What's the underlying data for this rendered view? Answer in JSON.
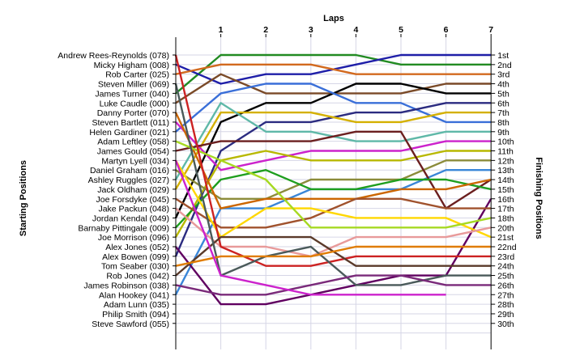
{
  "chart_data": {
    "type": "line",
    "title": "",
    "xlabel": "Laps",
    "ylabel_left": "Starting Positions",
    "ylabel_right": "Finishing Positions",
    "x": [
      0,
      1,
      2,
      3,
      4,
      5,
      6,
      7
    ],
    "x_tick_labels": [
      "1",
      "2",
      "3",
      "4",
      "5",
      "6",
      "7"
    ],
    "grid": true,
    "position_range": [
      1,
      30
    ],
    "starting_labels": [
      "Andrew Rees-Reynolds (078)",
      "Micky Higham (008)",
      "Rob Carter (025)",
      "Steven Miller (069)",
      "James Turner (040)",
      "Luke Caudle (000)",
      "Danny Porter (070)",
      "Steven Bartlett (011)",
      "Helen Gardiner (021)",
      "Adam Leftley (058)",
      "James Gould (054)",
      "Martyn Lyell (034)",
      "Daniel Graham (016)",
      "Ashley Ruggles (027)",
      "Jack Oldham (029)",
      "Joe Forsdyke (045)",
      "Jake Packun (048)",
      "Jordan Kendal (049)",
      "Barnaby Pittingale (009)",
      "Joe Morrison (096)",
      "Alex Jones (052)",
      "Alex Bowen (099)",
      "Tom Seaber (030)",
      "Rob Jones (042)",
      "James Robinson (038)",
      "Alan Hookey (041)",
      "Adam Lunn (035)",
      "Philip Smith (094)",
      "Steve Sawford (055)"
    ],
    "finishing_labels": [
      "1st",
      "2nd",
      "3rd",
      "4th",
      "5th",
      "6th",
      "7th",
      "8th",
      "9th",
      "10th",
      "11th",
      "12th",
      "13th",
      "14th",
      "15th",
      "16th",
      "17th",
      "18th",
      "20th",
      "21st",
      "22nd",
      "23rd",
      "24th",
      "25th",
      "26th",
      "27th",
      "28th",
      "29th",
      "30th"
    ],
    "series": [
      {
        "color": "#228b22",
        "positions": [
          5,
          1,
          1,
          1,
          1,
          2,
          2,
          2
        ]
      },
      {
        "color": "#1e1ea8",
        "positions": [
          2,
          4,
          3,
          3,
          2,
          1,
          1,
          1
        ]
      },
      {
        "color": "#d2691e",
        "positions": [
          3,
          2,
          2,
          2,
          3,
          3,
          3,
          3
        ]
      },
      {
        "color": "#7a4a28",
        "positions": [
          6,
          3,
          5,
          5,
          5,
          5,
          4,
          4
        ]
      },
      {
        "color": "#000000",
        "positions": [
          18,
          8,
          6,
          6,
          4,
          4,
          5,
          5
        ]
      },
      {
        "color": "#3a6fd8",
        "positions": [
          9,
          5,
          4,
          4,
          6,
          6,
          8,
          8
        ]
      },
      {
        "color": "#2b2b80",
        "positions": [
          22,
          11,
          8,
          8,
          7,
          7,
          6,
          6
        ]
      },
      {
        "color": "#d4b000",
        "positions": [
          15,
          7,
          7,
          7,
          8,
          8,
          7,
          7
        ]
      },
      {
        "color": "#5fb8a8",
        "positions": [
          14,
          6,
          9,
          9,
          10,
          10,
          9,
          9
        ]
      },
      {
        "color": "#cc22cc",
        "positions": [
          8,
          13,
          12,
          11,
          11,
          11,
          10,
          10
        ]
      },
      {
        "color": "#b8b800",
        "positions": [
          20,
          12,
          11,
          12,
          12,
          12,
          11,
          11
        ]
      },
      {
        "color": "#8b8b3a",
        "positions": [
          13,
          16,
          16,
          14,
          14,
          14,
          12,
          12
        ]
      },
      {
        "color": "#3a86d8",
        "positions": [
          26,
          17,
          17,
          15,
          15,
          15,
          13,
          13
        ]
      },
      {
        "color": "#6b1f1f",
        "positions": [
          11,
          10,
          10,
          10,
          9,
          9,
          17,
          14
        ]
      },
      {
        "color": "#1e9e1e",
        "positions": [
          19,
          14,
          13,
          15,
          15,
          14,
          14,
          15
        ]
      },
      {
        "color": "#cc6600",
        "positions": [
          7,
          17,
          16,
          16,
          16,
          15,
          15,
          14
        ]
      },
      {
        "color": "#600060",
        "positions": [
          21,
          27,
          27,
          26,
          25,
          24,
          24,
          16
        ]
      },
      {
        "color": "#a0522d",
        "positions": [
          16,
          19,
          19,
          18,
          16,
          16,
          17,
          17
        ]
      },
      {
        "color": "#ffd700",
        "positions": [
          12,
          20,
          17,
          17,
          18,
          18,
          18,
          20
        ]
      },
      {
        "color": "#a6d922",
        "positions": [
          10,
          12,
          14,
          19,
          19,
          19,
          19,
          18
        ]
      },
      {
        "color": "#e89a9a",
        "positions": [
          17,
          21,
          21,
          22,
          20,
          20,
          20,
          19
        ]
      },
      {
        "color": "#cc2222",
        "positions": [
          1,
          21,
          23,
          23,
          22,
          22,
          22,
          22
        ]
      },
      {
        "color": "#5a3a2a",
        "positions": [
          24,
          20,
          20,
          20,
          23,
          23,
          23,
          23
        ]
      },
      {
        "color": "#4a5a5a",
        "positions": [
          4,
          24,
          22,
          21,
          25,
          25,
          24,
          24
        ]
      },
      {
        "color": "#e07c00",
        "positions": [
          23,
          22,
          22,
          22,
          21,
          21,
          21,
          21
        ]
      },
      {
        "color": "#7a2a7a",
        "positions": [
          25,
          26,
          26,
          25,
          24,
          24,
          25,
          25
        ]
      },
      {
        "color": "#cc22cc",
        "positions": [
          12,
          24,
          25,
          26,
          26,
          26,
          26
        ]
      }
    ]
  }
}
